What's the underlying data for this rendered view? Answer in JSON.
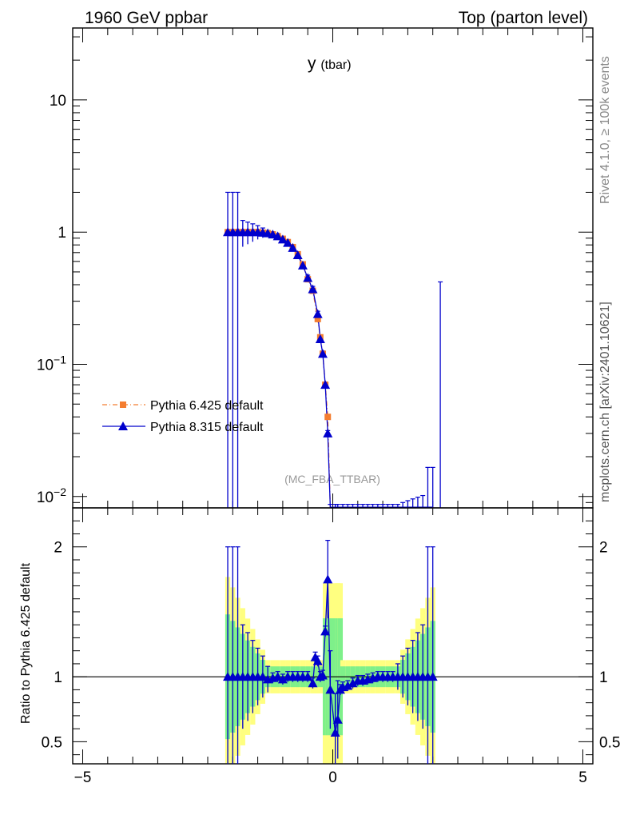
{
  "header": {
    "left": "1960 GeV ppbar",
    "right": "Top (parton level)"
  },
  "plot_title": {
    "main": "y",
    "sub": "(tbar)"
  },
  "side_labels": {
    "rivet": "Rivet 4.1.0, ≥ 100k events",
    "mcplots": "mcplots.cern.ch [arXiv:2401.10621]"
  },
  "analysis": "(MC_FBA_TTBAR)",
  "ratio_ylabel": "Ratio to Pythia 6.425 default",
  "colors": {
    "pythia6": "#f47d30",
    "pythia8": "#0000cc",
    "band_inner": "#7ef08a",
    "band_outer": "#ffff80"
  },
  "chart_data": [
    {
      "type": "line",
      "panel": "main",
      "yscale": "log",
      "xlim": [
        -5.2,
        5.2
      ],
      "ylim": [
        0.0082,
        35
      ],
      "yticks": [
        {
          "value": 10,
          "label": "10"
        },
        {
          "value": 1,
          "label": "1"
        },
        {
          "value": 0.1,
          "label": "10−1"
        },
        {
          "value": 0.01,
          "label": "10−2"
        }
      ],
      "legend": "left",
      "series": [
        {
          "name": "Pythia 6.425 default",
          "marker": "square",
          "linestyle": "dashdot",
          "x": [
            -2.1,
            -2.0,
            -1.9,
            -1.8,
            -1.7,
            -1.6,
            -1.5,
            -1.4,
            -1.3,
            -1.2,
            -1.1,
            -1.0,
            -0.9,
            -0.8,
            -0.7,
            -0.6,
            -0.5,
            -0.4,
            -0.3,
            -0.25,
            -0.2,
            -0.15,
            -0.1,
            -0.05,
            0.05,
            0.1,
            0.2,
            0.3,
            0.4,
            0.5,
            0.6,
            0.7,
            0.8,
            0.9,
            1.0,
            1.1,
            1.2,
            1.3,
            1.4,
            1.5,
            1.6,
            1.7,
            1.8,
            1.9,
            2.0
          ],
          "y": [
            1.0,
            1.0,
            1.0,
            1.0,
            1.0,
            1.0,
            1.0,
            0.99,
            0.98,
            0.96,
            0.93,
            0.89,
            0.84,
            0.77,
            0.68,
            0.57,
            0.44,
            0.36,
            0.22,
            0.16,
            0.12,
            0.07,
            0.04,
            0.0083,
            0.0083,
            0.0083,
            0.0083,
            0.0083,
            0.0083,
            0.0083,
            0.0083,
            0.0083,
            0.0083,
            0.0083,
            0.0083,
            0.0083,
            0.0083,
            0.0083,
            0.0083,
            0.0083,
            0.0083,
            0.0083,
            0.0083,
            0.0083,
            0.0083
          ]
        },
        {
          "name": "Pythia 8.315 default",
          "marker": "triangle",
          "linestyle": "solid",
          "x": [
            -2.1,
            -2.0,
            -1.9,
            -1.8,
            -1.7,
            -1.6,
            -1.5,
            -1.4,
            -1.3,
            -1.2,
            -1.1,
            -1.0,
            -0.9,
            -0.8,
            -0.7,
            -0.6,
            -0.5,
            -0.4,
            -0.3,
            -0.25,
            -0.2,
            -0.15,
            -0.1,
            -0.05,
            0.05,
            0.1,
            0.2,
            0.3,
            0.4,
            0.5,
            0.6,
            0.7,
            0.8,
            0.9,
            1.0,
            1.1,
            1.2,
            1.3,
            1.4,
            1.5,
            1.6,
            1.7,
            1.8,
            1.9,
            2.0
          ],
          "y": [
            1.0,
            1.0,
            1.0,
            1.0,
            1.0,
            1.0,
            1.0,
            0.99,
            0.98,
            0.96,
            0.93,
            0.88,
            0.83,
            0.76,
            0.67,
            0.56,
            0.45,
            0.37,
            0.24,
            0.155,
            0.12,
            0.07,
            0.03,
            0.0083,
            0.0083,
            0.0083,
            0.0083,
            0.0083,
            0.0083,
            0.0083,
            0.0083,
            0.0083,
            0.0083,
            0.0083,
            0.0083,
            0.0083,
            0.0083,
            0.0083,
            0.0083,
            0.0083,
            0.0083,
            0.0083,
            0.0083,
            0.0083,
            0.0083
          ]
        }
      ]
    },
    {
      "type": "line",
      "panel": "ratio",
      "xlim": [
        -5.2,
        5.2
      ],
      "ylim": [
        0.33,
        2.3
      ],
      "xticks": [
        -5,
        0,
        5
      ],
      "yticks": [
        0.5,
        1,
        2
      ],
      "series": [
        {
          "name": "Pythia 8.315 default",
          "x": [
            -2.1,
            -2.0,
            -1.9,
            -1.8,
            -1.7,
            -1.6,
            -1.5,
            -1.4,
            -1.3,
            -1.2,
            -1.1,
            -1.0,
            -0.9,
            -0.8,
            -0.7,
            -0.6,
            -0.5,
            -0.4,
            -0.35,
            -0.3,
            -0.25,
            -0.2,
            -0.15,
            -0.1,
            -0.05,
            0.05,
            0.1,
            0.15,
            0.2,
            0.3,
            0.4,
            0.5,
            0.6,
            0.7,
            0.8,
            0.9,
            1.0,
            1.1,
            1.2,
            1.3,
            1.4,
            1.5,
            1.6,
            1.7,
            1.8,
            1.9,
            2.0
          ],
          "y": [
            1.0,
            1.0,
            1.0,
            1.0,
            1.0,
            1.0,
            1.0,
            1.0,
            0.98,
            0.99,
            1.0,
            0.98,
            1.0,
            1.0,
            1.0,
            1.0,
            1.0,
            0.95,
            1.15,
            1.12,
            1.0,
            1.01,
            1.35,
            1.75,
            0.9,
            0.57,
            0.67,
            0.9,
            0.92,
            0.93,
            0.95,
            0.97,
            0.97,
            0.98,
            0.99,
            1.0,
            1.0,
            1.0,
            1.0,
            1.0,
            1.0,
            1.0,
            1.0,
            1.0,
            1.0,
            1.0,
            1.0
          ]
        }
      ]
    }
  ]
}
